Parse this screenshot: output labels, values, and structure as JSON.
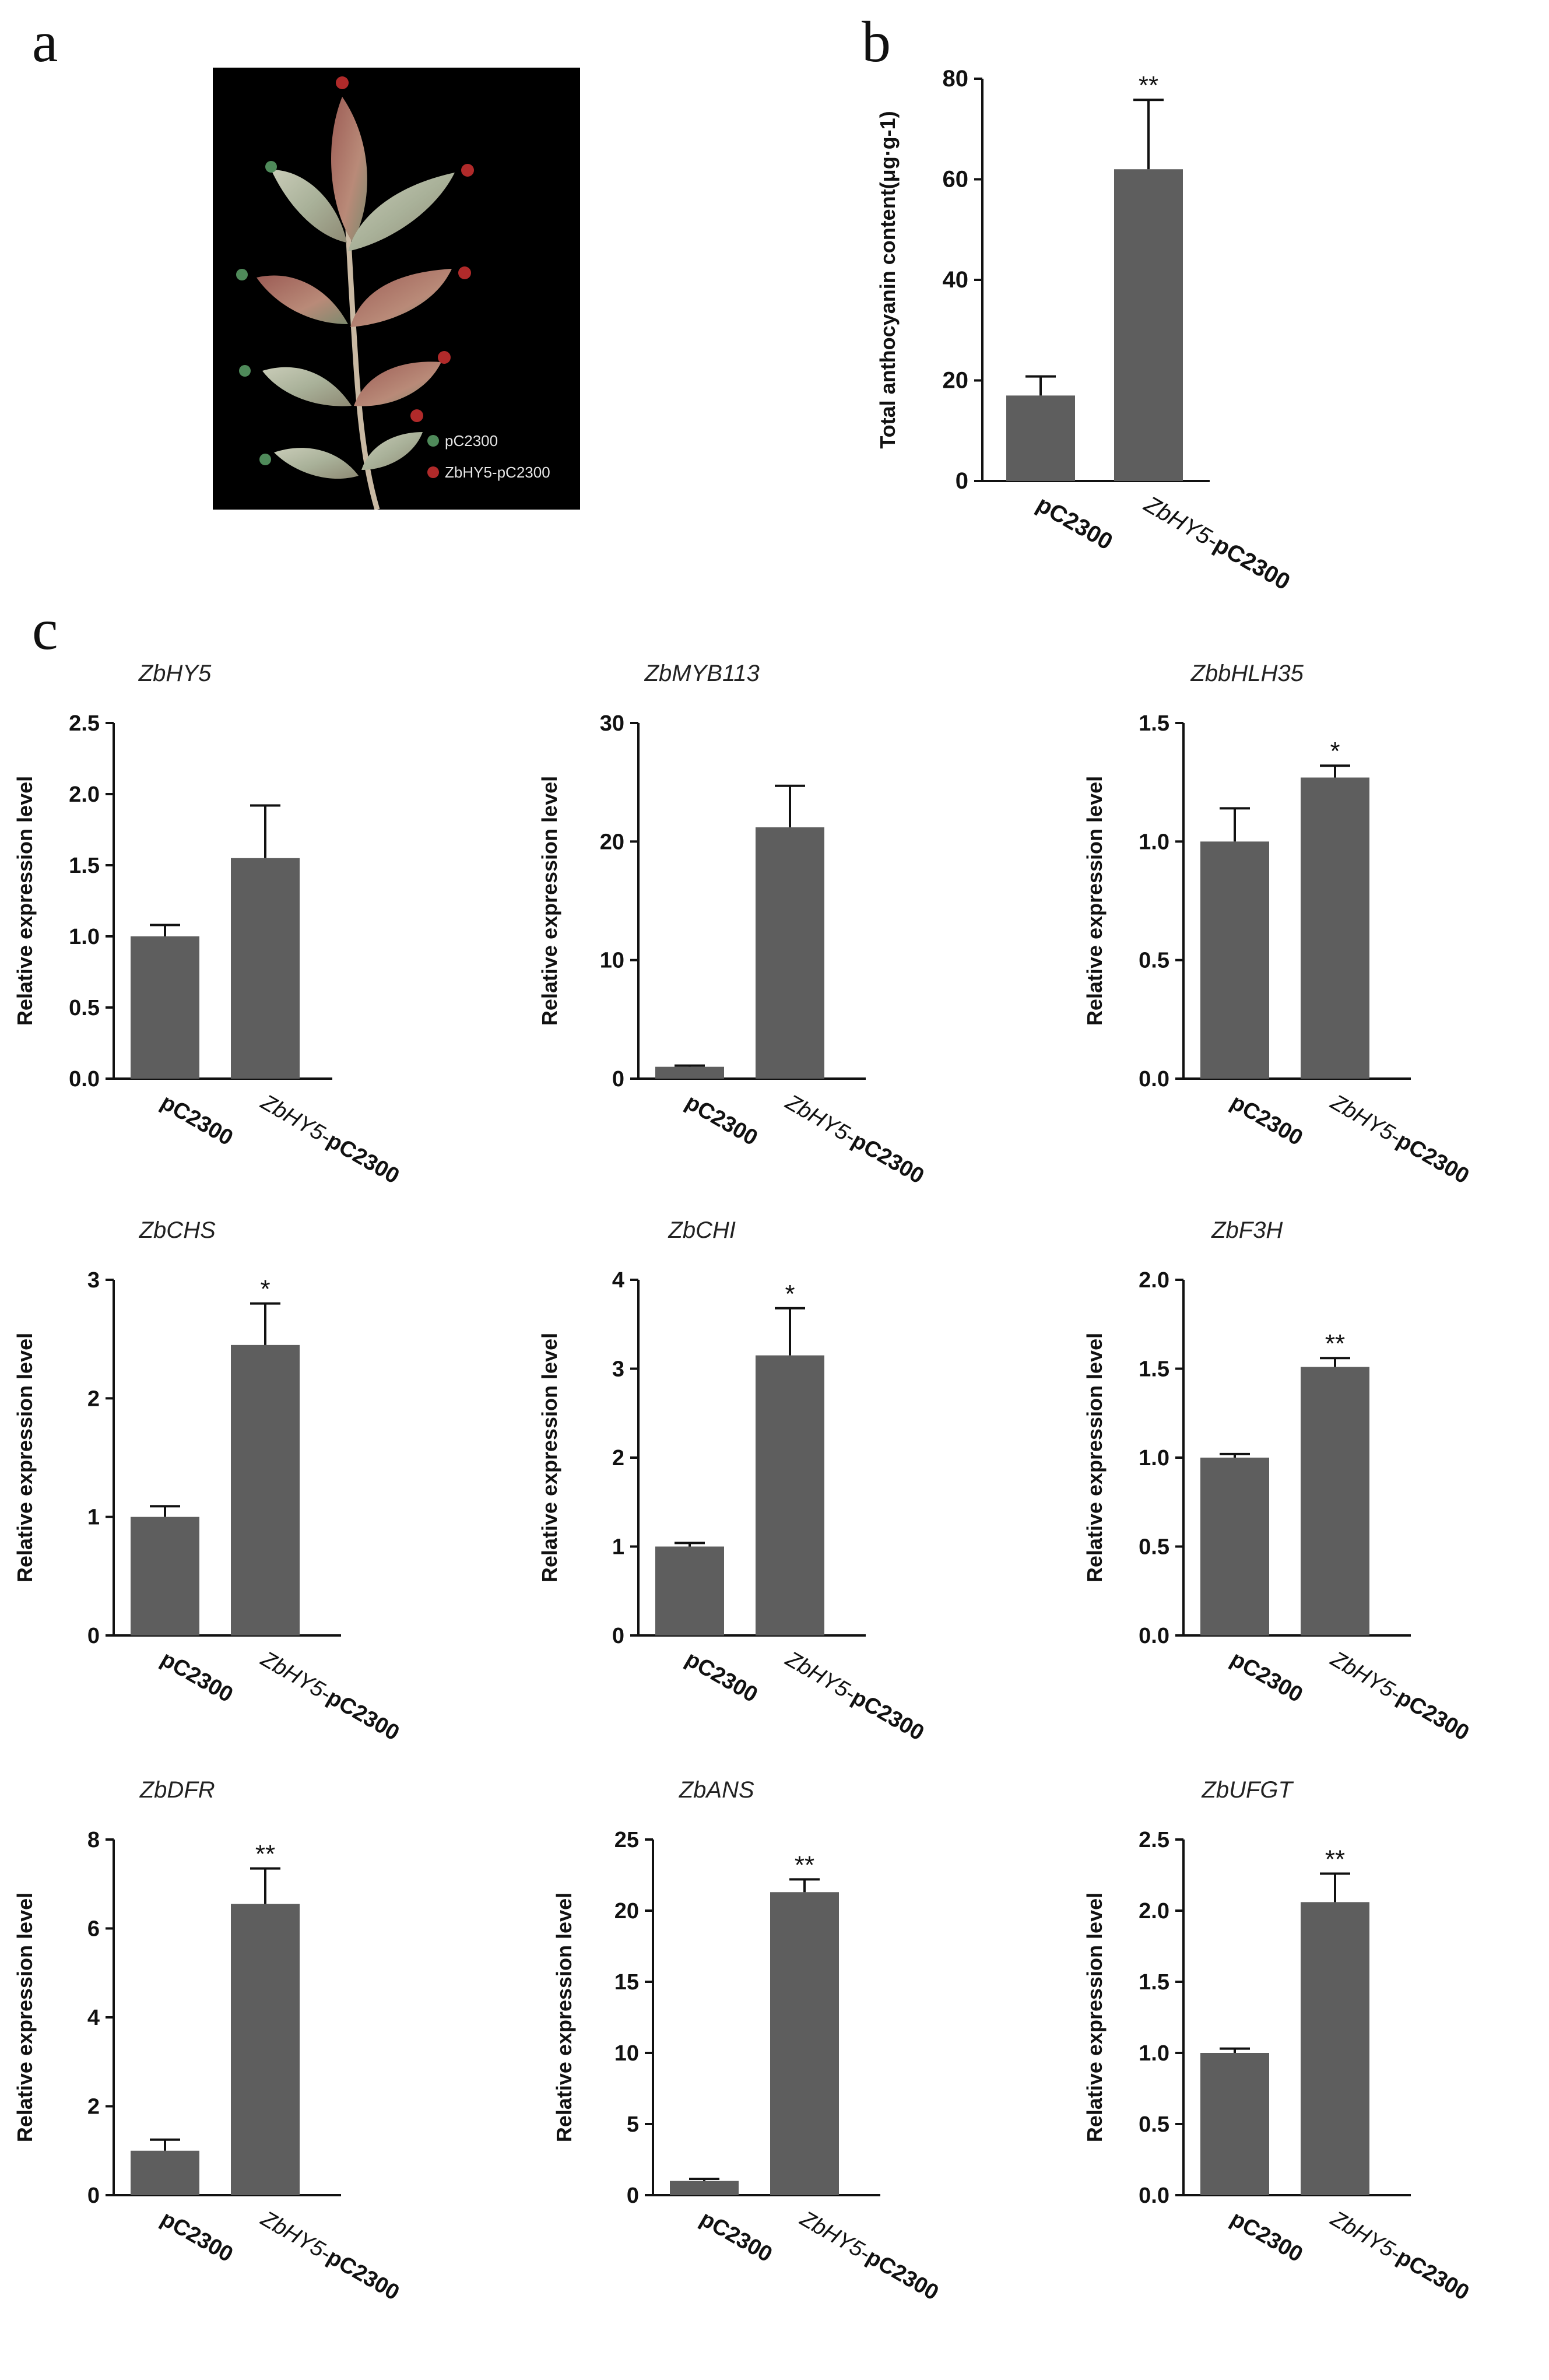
{
  "panel_letters": {
    "a": "a",
    "b": "b",
    "c": "c"
  },
  "panel_a": {
    "legend": [
      {
        "label": "pC2300",
        "color": "#4f8a5a"
      },
      {
        "label": "ZbHY5-pC2300",
        "color": "#b02a2a"
      }
    ]
  },
  "colors": {
    "bar": "#5e5e5e",
    "axis": "#111111"
  },
  "chart_data": [
    {
      "id": "b",
      "type": "bar",
      "title": "",
      "ylabel": "Total anthocyanin content(μg·g-1)",
      "categories": [
        "pC2300",
        "ZbHY5-pC2300"
      ],
      "values": [
        17,
        62
      ],
      "errors": [
        3.8,
        13.8
      ],
      "significance": [
        "",
        "**"
      ],
      "ylim": [
        0,
        80
      ],
      "yticks": [
        "0",
        "20",
        "40",
        "60",
        "80"
      ]
    },
    {
      "id": "ZbHY5",
      "type": "bar",
      "title": "ZbHY5",
      "ylabel": "Relative expression level",
      "categories": [
        "pC2300",
        "ZbHY5-pC2300"
      ],
      "values": [
        1.0,
        1.55
      ],
      "errors": [
        0.08,
        0.37
      ],
      "significance": [
        "",
        ""
      ],
      "ylim": [
        0,
        2.5
      ],
      "yticks": [
        "0.0",
        "0.5",
        "1.0",
        "1.5",
        "2.0",
        "2.5"
      ]
    },
    {
      "id": "ZbMYB113",
      "type": "bar",
      "title": "ZbMYB113",
      "ylabel": "Relative expression level",
      "categories": [
        "pC2300",
        "ZbHY5-pC2300"
      ],
      "values": [
        1.0,
        21.2
      ],
      "errors": [
        0.1,
        3.5
      ],
      "significance": [
        "",
        ""
      ],
      "ylim": [
        0,
        30
      ],
      "yticks": [
        "0",
        "10",
        "20",
        "30"
      ]
    },
    {
      "id": "ZbbHLH35",
      "type": "bar",
      "title": "ZbbHLH35",
      "ylabel": "Relative expression level",
      "categories": [
        "pC2300",
        "ZbHY5-pC2300"
      ],
      "values": [
        1.0,
        1.27
      ],
      "errors": [
        0.14,
        0.05
      ],
      "significance": [
        "",
        "*"
      ],
      "ylim": [
        0,
        1.5
      ],
      "yticks": [
        "0.0",
        "0.5",
        "1.0",
        "1.5"
      ]
    },
    {
      "id": "ZbCHS",
      "type": "bar",
      "title": "ZbCHS",
      "ylabel": "Relative expression level",
      "categories": [
        "pC2300",
        "ZbHY5-pC2300"
      ],
      "values": [
        1.0,
        2.45
      ],
      "errors": [
        0.09,
        0.35
      ],
      "significance": [
        "",
        "*"
      ],
      "ylim": [
        0,
        3
      ],
      "yticks": [
        "0",
        "1",
        "2",
        "3"
      ]
    },
    {
      "id": "ZbCHI",
      "type": "bar",
      "title": "ZbCHI",
      "ylabel": "Relative expression level",
      "categories": [
        "pC2300",
        "ZbHY5-pC2300"
      ],
      "values": [
        1.0,
        3.15
      ],
      "errors": [
        0.04,
        0.53
      ],
      "significance": [
        "",
        "*"
      ],
      "ylim": [
        0,
        4
      ],
      "yticks": [
        "0",
        "1",
        "2",
        "3",
        "4"
      ]
    },
    {
      "id": "ZbF3H",
      "type": "bar",
      "title": "ZbF3H",
      "ylabel": "Relative expression level",
      "categories": [
        "pC2300",
        "ZbHY5-pC2300"
      ],
      "values": [
        1.0,
        1.51
      ],
      "errors": [
        0.02,
        0.05
      ],
      "significance": [
        "",
        "**"
      ],
      "ylim": [
        0,
        2.0
      ],
      "yticks": [
        "0.0",
        "0.5",
        "1.0",
        "1.5",
        "2.0"
      ]
    },
    {
      "id": "ZbDFR",
      "type": "bar",
      "title": "ZbDFR",
      "ylabel": "Relative expression level",
      "categories": [
        "pC2300",
        "ZbHY5-pC2300"
      ],
      "values": [
        1.0,
        6.55
      ],
      "errors": [
        0.25,
        0.8
      ],
      "significance": [
        "",
        "**"
      ],
      "ylim": [
        0,
        8
      ],
      "yticks": [
        "0",
        "2",
        "4",
        "6",
        "8"
      ]
    },
    {
      "id": "ZbANS",
      "type": "bar",
      "title": "ZbANS",
      "ylabel": "Relative expression level",
      "categories": [
        "pC2300",
        "ZbHY5-pC2300"
      ],
      "values": [
        1.0,
        21.3
      ],
      "errors": [
        0.15,
        0.9
      ],
      "significance": [
        "",
        "**"
      ],
      "ylim": [
        0,
        25
      ],
      "yticks": [
        "0",
        "5",
        "10",
        "15",
        "20",
        "25"
      ]
    },
    {
      "id": "ZbUFGT",
      "type": "bar",
      "title": "ZbUFGT",
      "ylabel": "Relative expression level",
      "categories": [
        "pC2300",
        "ZbHY5-pC2300"
      ],
      "values": [
        1.0,
        2.06
      ],
      "errors": [
        0.03,
        0.2
      ],
      "significance": [
        "",
        "**"
      ],
      "ylim": [
        0,
        2.5
      ],
      "yticks": [
        "0.0",
        "0.5",
        "1.0",
        "1.5",
        "2.0",
        "2.5"
      ]
    }
  ]
}
